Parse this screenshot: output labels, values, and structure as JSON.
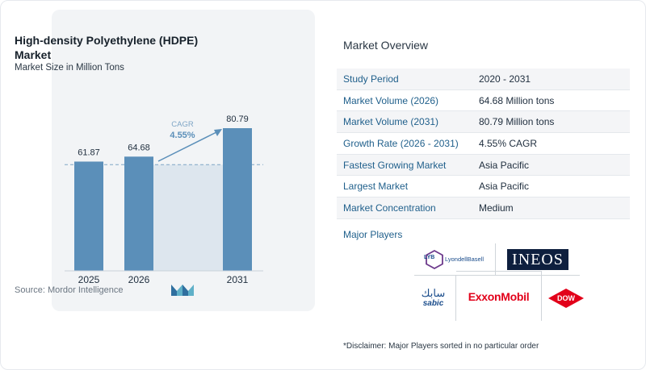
{
  "chart": {
    "title": "High-density Polyethylene (HDPE) Market",
    "subtitle": "Market Size in Million Tons",
    "source": "Source:  Mordor Intelligence",
    "cagr_label": "CAGR",
    "cagr_value": "4.55%"
  },
  "chart_data": {
    "type": "bar",
    "categories": [
      "2025",
      "2026",
      "2031"
    ],
    "values": [
      61.87,
      64.68,
      80.79
    ],
    "data_labels": [
      "61.87",
      "64.68",
      "80.79"
    ],
    "title": "High-density Polyethylene (HDPE) Market",
    "subtitle": "Market Size in Million Tons",
    "colors": {
      "bar": "#5b8fb9",
      "highlight_band": "#dde6ee",
      "arrow": "#5b8fb9",
      "cagr_text": "#5b8fb9"
    },
    "grid": false
  },
  "overview": {
    "title": "Market Overview",
    "rows": [
      {
        "label": "Study Period",
        "value": "2020 - 2031"
      },
      {
        "label": "Market Volume (2026)",
        "value": "64.68 Million tons"
      },
      {
        "label": "Market Volume (2031)",
        "value": "80.79 Million tons"
      },
      {
        "label": "Growth Rate (2026 - 2031)",
        "value": "4.55% CAGR"
      },
      {
        "label": "Fastest Growing Market",
        "value": "Asia Pacific"
      },
      {
        "label": "Largest Market",
        "value": "Asia Pacific"
      },
      {
        "label": "Market Concentration",
        "value": "Medium"
      }
    ]
  },
  "players": {
    "title": "Major Players",
    "lyb_mark": "LYB",
    "lyb_name": "LyondellBasell",
    "ineos": "INEOS",
    "sabic_arabic": "سابك",
    "sabic": "sabic",
    "exxon": "ExxonMobil",
    "dow": "DOW"
  },
  "disclaimer": "*Disclaimer: Major Players sorted in no particular order"
}
